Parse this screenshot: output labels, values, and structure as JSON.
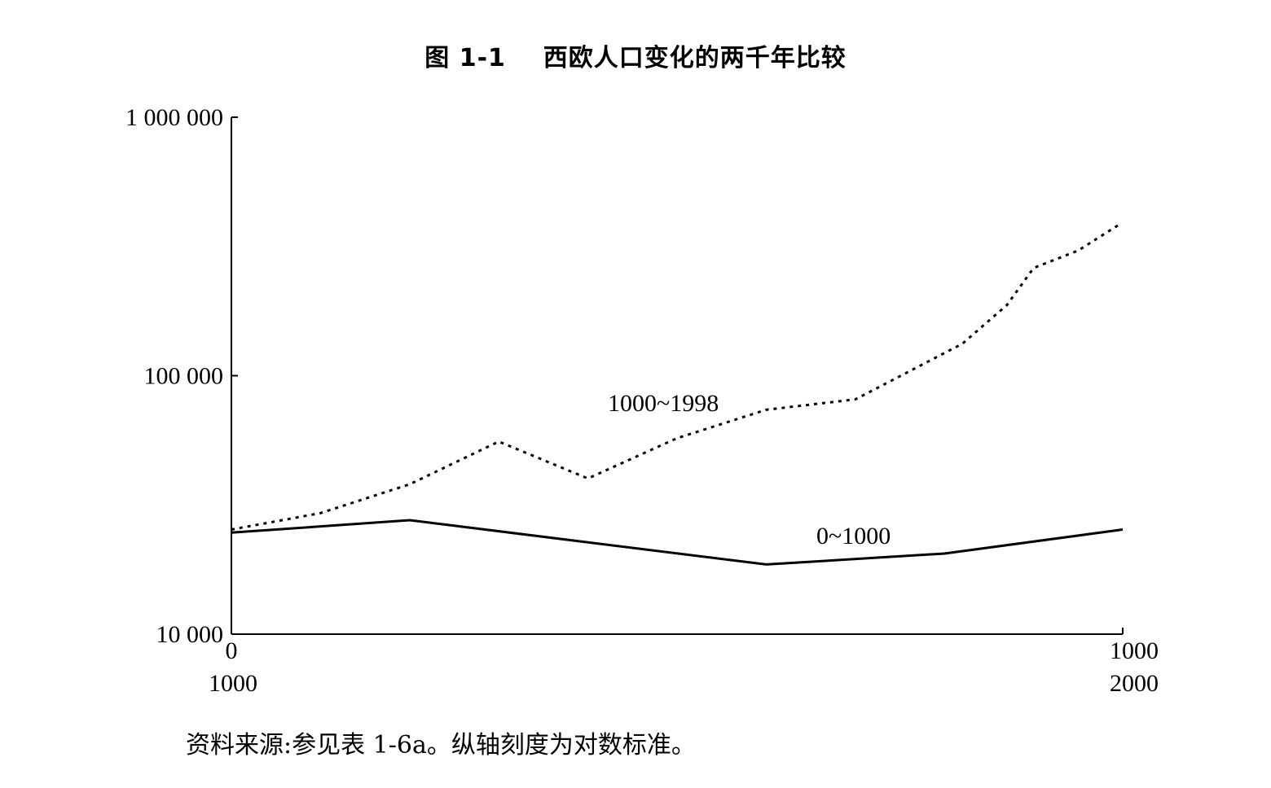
{
  "chart_data": {
    "type": "line",
    "title": "图 1-1    西欧人口变化的两千年比较",
    "y_scale": "log",
    "ylim": [
      10000,
      1000000
    ],
    "y_ticks": [
      {
        "value": 10000,
        "label": "10 000"
      },
      {
        "value": 100000,
        "label": "100 000"
      },
      {
        "value": 1000000,
        "label": "1 000 000"
      }
    ],
    "xlim": [
      0,
      1000
    ],
    "x_ticks": [
      {
        "value": 0,
        "label": "0",
        "alt_label": "1000"
      },
      {
        "value": 1000,
        "label": "1000",
        "alt_label": "2000"
      }
    ],
    "series": [
      {
        "name": "0~1000",
        "style": "solid",
        "points": [
          [
            0,
            24700
          ],
          [
            200,
            27600
          ],
          [
            600,
            18600
          ],
          [
            800,
            20500
          ],
          [
            1000,
            25400
          ]
        ]
      },
      {
        "name": "1000~1998",
        "style": "dotted",
        "points": [
          [
            1000,
            25400
          ],
          [
            1100,
            29400
          ],
          [
            1200,
            38000
          ],
          [
            1300,
            55600
          ],
          [
            1400,
            40000
          ],
          [
            1500,
            57300
          ],
          [
            1600,
            73800
          ],
          [
            1700,
            81000
          ],
          [
            1820,
            132900
          ],
          [
            1870,
            187500
          ],
          [
            1900,
            261000
          ],
          [
            1950,
            304900
          ],
          [
            1998,
            388000
          ]
        ]
      }
    ]
  },
  "source_note": "资料来源:参见表 1-6a。纵轴刻度为对数标准。"
}
